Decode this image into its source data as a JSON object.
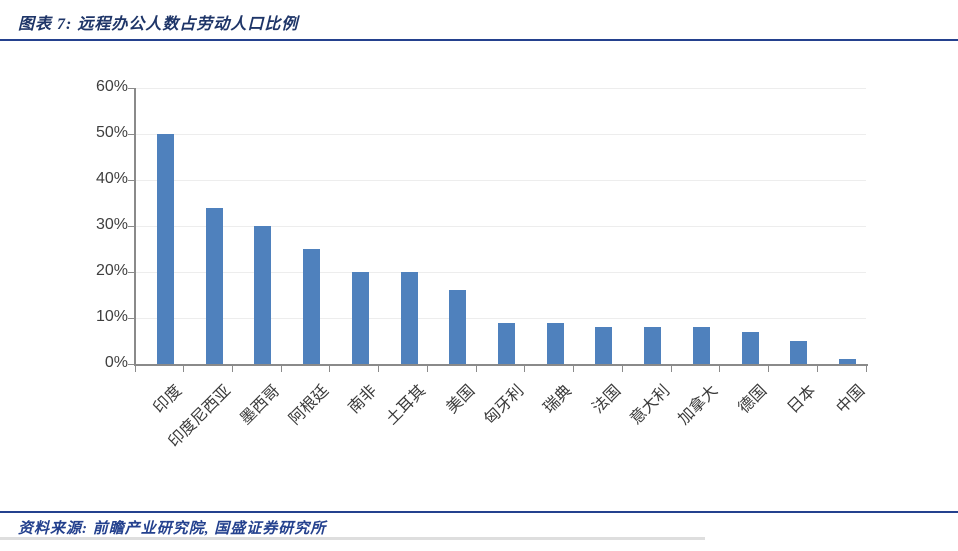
{
  "header": {
    "title": "图表 7: 远程办公人数占劳动人口比例"
  },
  "footer": {
    "source": "资料来源: 前瞻产业研究院, 国盛证券研究所"
  },
  "colors": {
    "bar": "#4f81bd",
    "rule_blue": "#24418e",
    "title_text": "#1e3568",
    "axis_gray": "#8a8a8a",
    "gridline_gray": "#ededed",
    "tick_label_gray": "#3f3f3f"
  },
  "chart_data": {
    "type": "bar",
    "title": "远程办公人数占劳动人口比例",
    "categories": [
      "印度",
      "印度尼西亚",
      "墨西哥",
      "阿根廷",
      "南非",
      "土耳其",
      "美国",
      "匈牙利",
      "瑞典",
      "法国",
      "意大利",
      "加拿大",
      "德国",
      "日本",
      "中国"
    ],
    "values": [
      50,
      34,
      30,
      25,
      20,
      20,
      16,
      9,
      9,
      8,
      8,
      8,
      7,
      5,
      1
    ],
    "unit": "%",
    "xlabel": "",
    "ylabel": "",
    "ylim": [
      0,
      60
    ],
    "ytick_step": 10,
    "ytick_labels": [
      "0%",
      "10%",
      "20%",
      "30%",
      "40%",
      "50%",
      "60%"
    ],
    "grid": true,
    "legend": "none",
    "bar_color": "#4f81bd"
  }
}
